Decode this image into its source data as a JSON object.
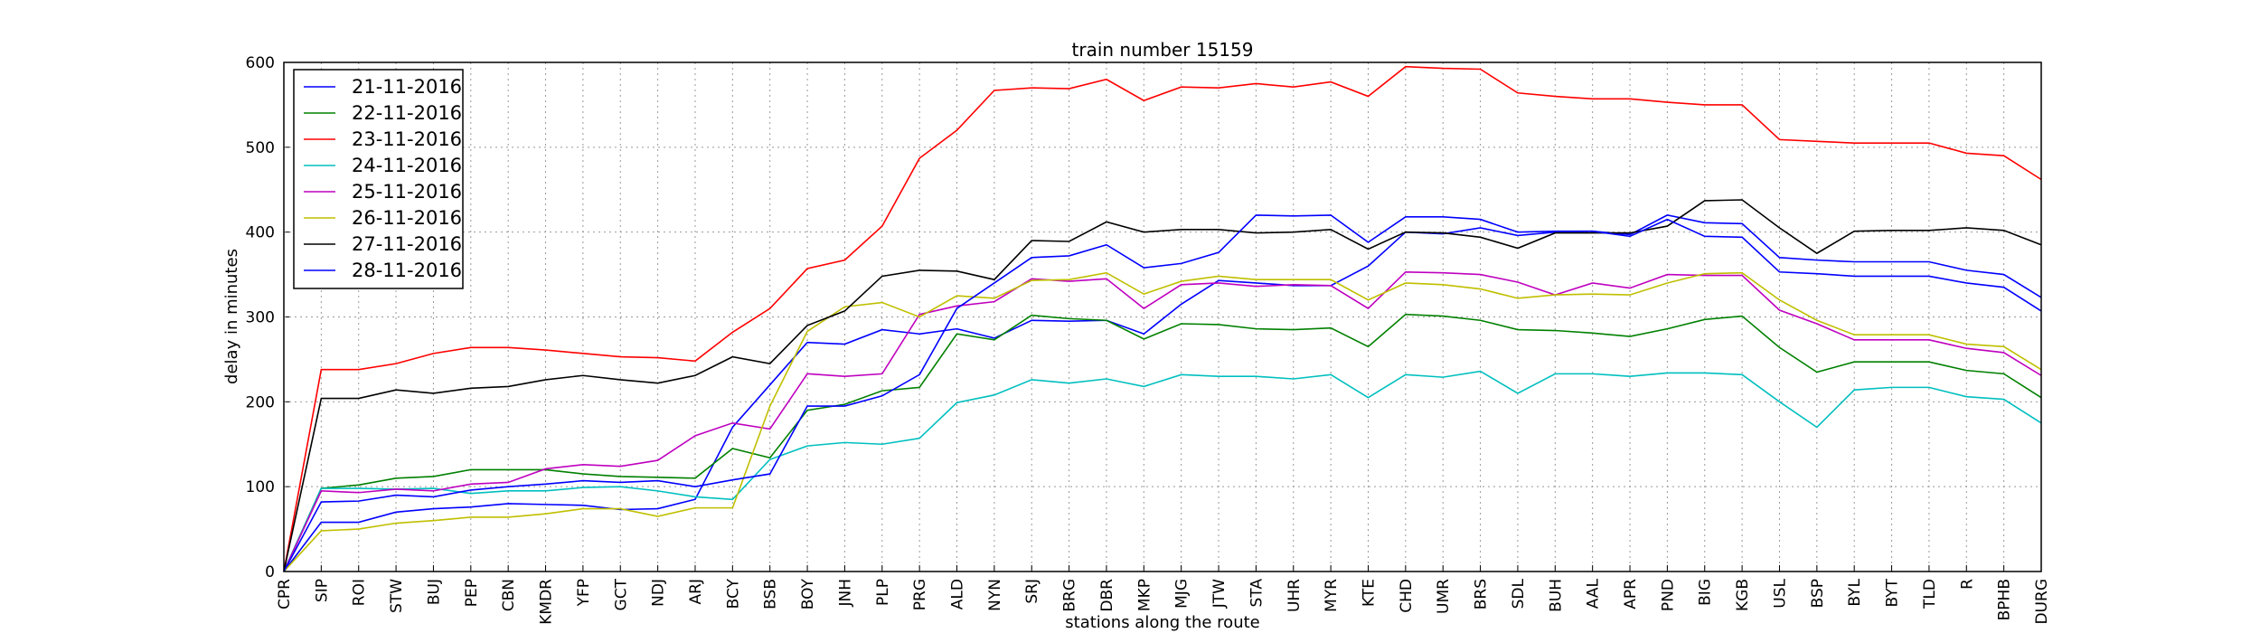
{
  "chart_data": {
    "type": "line",
    "title": "train number 15159",
    "xlabel": "stations along the route",
    "ylabel": "delay in minutes",
    "categories": [
      "CPR",
      "SIP",
      "ROI",
      "STW",
      "BUJ",
      "PEP",
      "CBN",
      "KMDR",
      "YFP",
      "GCT",
      "NDJ",
      "ARJ",
      "BCY",
      "BSB",
      "BOY",
      "JNH",
      "PLP",
      "PRG",
      "ALD",
      "NYN",
      "SRJ",
      "BRG",
      "DBR",
      "MKP",
      "MJG",
      "JTW",
      "STA",
      "UHR",
      "MYR",
      "KTE",
      "CHD",
      "UMR",
      "BRS",
      "SDL",
      "BUH",
      "AAL",
      "APR",
      "PND",
      "BIG",
      "KGB",
      "USL",
      "BSP",
      "BYL",
      "BYT",
      "TLD",
      "R",
      "BPHB",
      "DURG"
    ],
    "series": [
      {
        "name": "21-11-2016",
        "color": "#0000ff",
        "values": [
          0,
          58,
          58,
          70,
          74,
          76,
          80,
          79,
          78,
          73,
          74,
          85,
          170,
          220,
          270,
          268,
          285,
          280,
          286,
          275,
          296,
          295,
          296,
          280,
          315,
          343,
          340,
          337,
          337,
          360,
          400,
          398,
          405,
          396,
          400,
          401,
          397,
          420,
          411,
          410,
          370,
          367,
          365,
          365,
          365,
          355,
          350,
          323
        ]
      },
      {
        "name": "22-11-2016",
        "color": "#008000",
        "values": [
          0,
          98,
          102,
          110,
          112,
          120,
          120,
          120,
          115,
          112,
          111,
          110,
          145,
          134,
          190,
          197,
          213,
          217,
          280,
          273,
          302,
          298,
          296,
          274,
          292,
          291,
          286,
          285,
          287,
          265,
          303,
          301,
          296,
          285,
          284,
          281,
          277,
          286,
          297,
          301,
          264,
          235,
          247,
          247,
          247,
          237,
          233,
          205
        ]
      },
      {
        "name": "23-11-2016",
        "color": "#ff0000",
        "values": [
          0,
          238,
          238,
          245,
          257,
          264,
          264,
          261,
          257,
          253,
          252,
          248,
          282,
          310,
          357,
          367,
          407,
          487,
          520,
          567,
          570,
          569,
          580,
          555,
          571,
          570,
          575,
          571,
          577,
          560,
          595,
          593,
          592,
          564,
          560,
          557,
          557,
          553,
          550,
          550,
          509,
          507,
          505,
          505,
          505,
          493,
          490,
          462
        ]
      },
      {
        "name": "24-11-2016",
        "color": "#00bfbf",
        "values": [
          0,
          98,
          98,
          97,
          98,
          92,
          95,
          95,
          99,
          100,
          95,
          88,
          85,
          132,
          148,
          152,
          150,
          157,
          199,
          208,
          226,
          222,
          227,
          218,
          232,
          230,
          230,
          227,
          232,
          205,
          232,
          229,
          236,
          210,
          233,
          233,
          230,
          234,
          234,
          232,
          200,
          170,
          214,
          217,
          217,
          206,
          203,
          175
        ]
      },
      {
        "name": "25-11-2016",
        "color": "#bf00bf",
        "values": [
          0,
          95,
          93,
          97,
          95,
          103,
          105,
          121,
          126,
          124,
          131,
          160,
          175,
          168,
          233,
          230,
          233,
          303,
          313,
          318,
          345,
          342,
          345,
          310,
          338,
          340,
          336,
          338,
          337,
          310,
          353,
          352,
          350,
          341,
          326,
          340,
          334,
          350,
          349,
          349,
          308,
          292,
          273,
          273,
          273,
          263,
          258,
          231
        ]
      },
      {
        "name": "26-11-2016",
        "color": "#bfbf00",
        "values": [
          0,
          48,
          50,
          57,
          60,
          64,
          64,
          68,
          74,
          74,
          65,
          75,
          75,
          195,
          283,
          312,
          317,
          300,
          325,
          322,
          343,
          344,
          352,
          327,
          342,
          348,
          344,
          344,
          344,
          320,
          340,
          338,
          333,
          322,
          326,
          327,
          326,
          340,
          351,
          352,
          320,
          296,
          279,
          279,
          279,
          268,
          265,
          238
        ]
      },
      {
        "name": "27-11-2016",
        "color": "#000000",
        "values": [
          0,
          204,
          204,
          214,
          210,
          216,
          218,
          226,
          231,
          226,
          222,
          231,
          253,
          245,
          290,
          307,
          348,
          355,
          354,
          344,
          390,
          389,
          412,
          400,
          403,
          403,
          399,
          400,
          403,
          380,
          400,
          399,
          394,
          381,
          399,
          399,
          399,
          407,
          437,
          438,
          405,
          375,
          401,
          402,
          402,
          405,
          402,
          385
        ]
      },
      {
        "name": "28-11-2016",
        "color": "#0000ff",
        "values": [
          0,
          82,
          83,
          90,
          88,
          96,
          100,
          103,
          107,
          105,
          107,
          100,
          108,
          115,
          195,
          195,
          207,
          232,
          310,
          340,
          370,
          372,
          385,
          358,
          363,
          376,
          420,
          419,
          420,
          388,
          418,
          418,
          415,
          400,
          401,
          401,
          395,
          415,
          395,
          394,
          353,
          351,
          348,
          348,
          348,
          340,
          335,
          307
        ]
      }
    ],
    "ylim": [
      0,
      600
    ],
    "yticks": [
      0,
      100,
      200,
      300,
      400,
      500,
      600
    ],
    "grid": true,
    "legend": "upper left"
  }
}
